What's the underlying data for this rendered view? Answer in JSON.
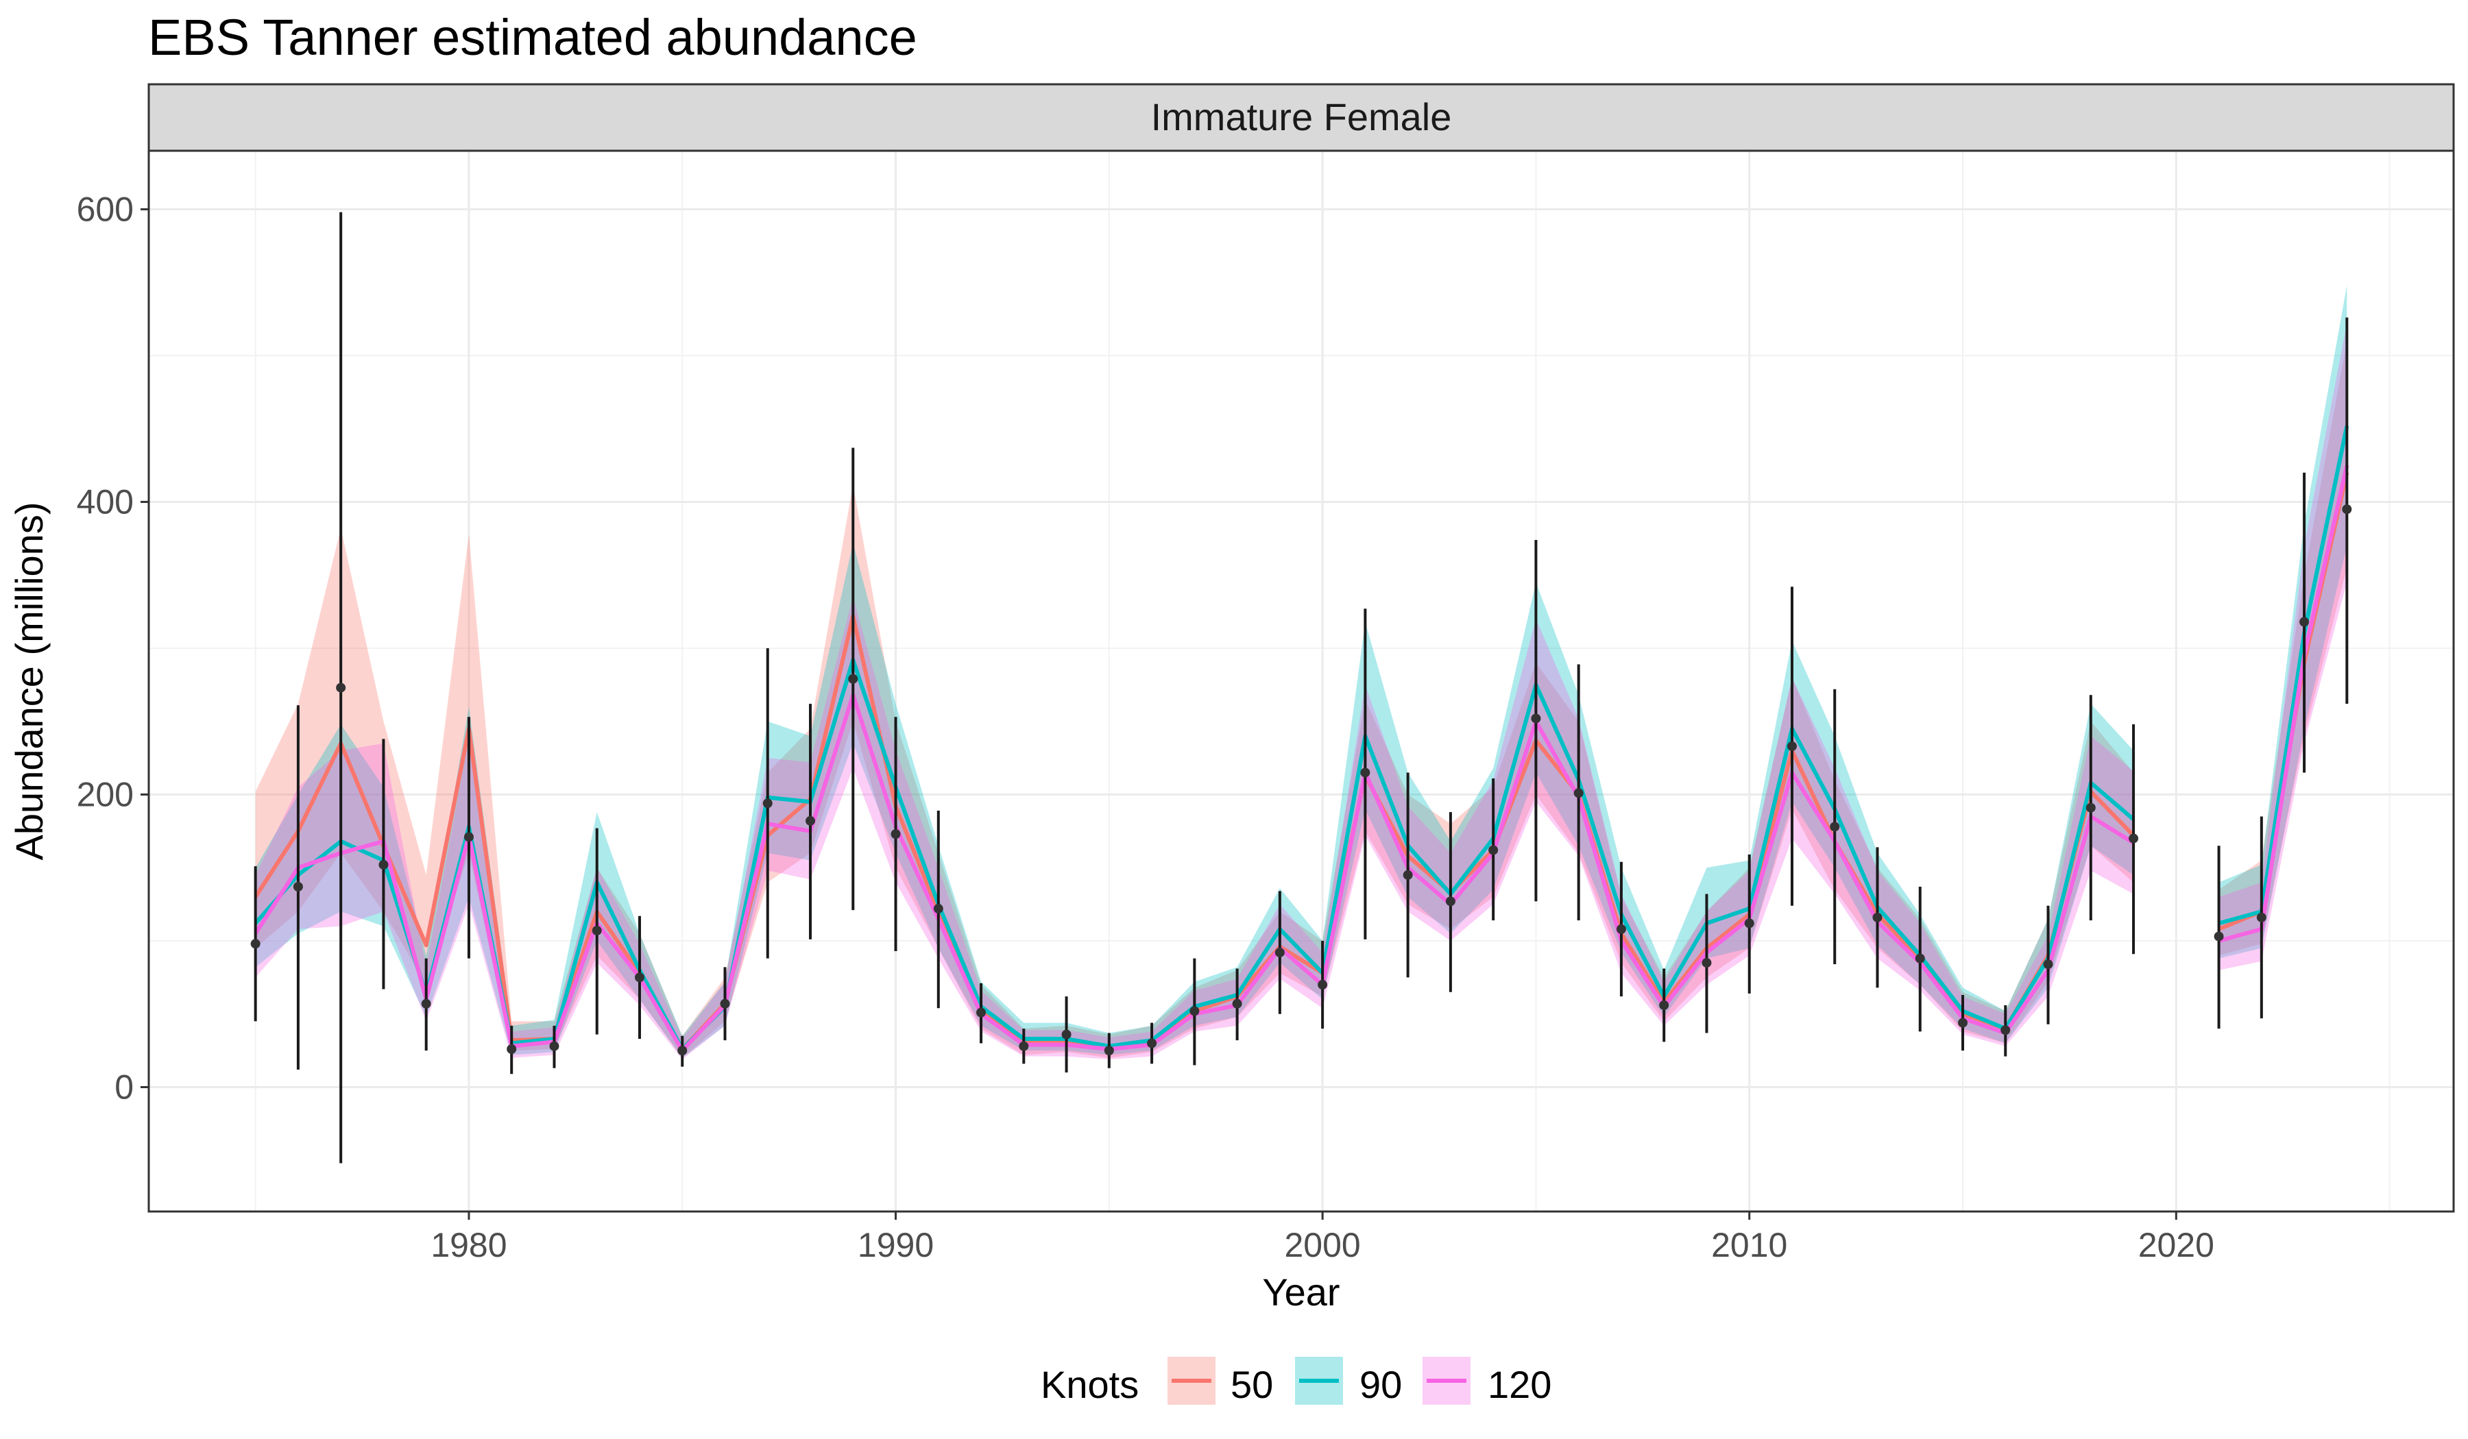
{
  "chart_data": {
    "type": "line",
    "title": "EBS Tanner estimated abundance",
    "facet": "Immature Female",
    "xlabel": "Year",
    "ylabel": "Abundance (millions)",
    "xlim": [
      1972.5,
      2026.5
    ],
    "ylim": [
      -85,
      640
    ],
    "x_ticks": [
      1980,
      1990,
      2000,
      2010,
      2020
    ],
    "x_minor_ticks": [
      1975,
      1985,
      1995,
      2005,
      2015,
      2025
    ],
    "y_ticks": [
      0,
      200,
      400,
      600
    ],
    "y_minor_ticks": [
      100,
      300,
      500
    ],
    "grid": true,
    "legend": {
      "title": "Knots",
      "position": "bottom",
      "entries": [
        "50",
        "90",
        "120"
      ]
    },
    "colors": {
      "50": "#F8766D",
      "90": "#00BFC4",
      "120": "#F564E3",
      "observed": "#1a1a1a",
      "grid": "#ebebeb",
      "strip": "#d9d9d9"
    },
    "x": [
      1975,
      1976,
      1977,
      1978,
      1979,
      1980,
      1981,
      1982,
      1983,
      1984,
      1985,
      1986,
      1987,
      1988,
      1989,
      1990,
      1991,
      1992,
      1993,
      1994,
      1995,
      1996,
      1997,
      1998,
      1999,
      2000,
      2001,
      2002,
      2003,
      2004,
      2005,
      2006,
      2007,
      2008,
      2009,
      2010,
      2011,
      2012,
      2013,
      2014,
      2015,
      2016,
      2017,
      2018,
      2019,
      2021,
      2022,
      2023,
      2024
    ],
    "observed": {
      "mean": [
        98,
        137,
        273,
        152,
        57,
        171,
        26,
        28,
        107,
        75,
        25,
        57,
        194,
        182,
        279,
        173,
        122,
        51,
        28,
        36,
        25,
        30,
        52,
        57,
        92,
        70,
        215,
        145,
        127,
        162,
        252,
        201,
        108,
        56,
        85,
        112,
        233,
        178,
        116,
        88,
        44,
        39,
        84,
        191,
        170,
        103,
        116,
        318,
        395
      ],
      "lower": [
        45,
        12,
        -52,
        67,
        25,
        88,
        9,
        13,
        36,
        33,
        14,
        32,
        88,
        101,
        121,
        93,
        54,
        30,
        16,
        10,
        13,
        16,
        15,
        32,
        50,
        40,
        101,
        75,
        65,
        114,
        127,
        114,
        62,
        31,
        37,
        64,
        124,
        84,
        68,
        38,
        25,
        21,
        43,
        114,
        91,
        40,
        47,
        215,
        262
      ],
      "upper": [
        151,
        261,
        598,
        238,
        88,
        253,
        42,
        42,
        177,
        117,
        35,
        82,
        300,
        262,
        437,
        253,
        189,
        71,
        40,
        62,
        37,
        44,
        88,
        81,
        134,
        100,
        327,
        215,
        188,
        211,
        374,
        289,
        154,
        81,
        132,
        159,
        342,
        272,
        164,
        137,
        63,
        56,
        124,
        268,
        248,
        165,
        185,
        420,
        526
      ]
    },
    "series": [
      {
        "name": "50",
        "values": [
          130,
          175,
          235,
          165,
          97,
          245,
          32,
          33,
          120,
          78,
          26,
          57,
          172,
          197,
          322,
          192,
          120,
          53,
          30,
          32,
          27,
          31,
          52,
          62,
          96,
          78,
          213,
          158,
          133,
          162,
          237,
          200,
          105,
          58,
          95,
          118,
          230,
          168,
          118,
          88,
          50,
          40,
          90,
          202,
          172,
          108,
          120,
          290,
          420
        ],
        "lower": [
          95,
          120,
          160,
          120,
          70,
          160,
          25,
          26,
          90,
          60,
          20,
          45,
          140,
          160,
          250,
          150,
          95,
          40,
          22,
          24,
          20,
          24,
          40,
          48,
          78,
          62,
          175,
          125,
          108,
          130,
          200,
          160,
          85,
          45,
          75,
          95,
          190,
          135,
          95,
          70,
          38,
          30,
          72,
          165,
          140,
          90,
          98,
          240,
          355
        ],
        "upper": [
          202,
          262,
          382,
          250,
          145,
          378,
          45,
          45,
          150,
          105,
          35,
          75,
          215,
          245,
          412,
          250,
          160,
          70,
          40,
          42,
          36,
          42,
          68,
          80,
          120,
          100,
          265,
          200,
          180,
          205,
          290,
          250,
          130,
          75,
          120,
          150,
          280,
          210,
          150,
          115,
          65,
          52,
          115,
          250,
          215,
          135,
          155,
          350,
          510
        ]
      },
      {
        "name": "90",
        "values": [
          112,
          145,
          168,
          155,
          63,
          178,
          30,
          33,
          140,
          80,
          26,
          55,
          198,
          195,
          292,
          205,
          125,
          55,
          33,
          33,
          28,
          32,
          55,
          63,
          108,
          78,
          240,
          165,
          132,
          170,
          275,
          210,
          118,
          62,
          112,
          122,
          245,
          190,
          123,
          90,
          52,
          40,
          88,
          208,
          183,
          112,
          120,
          310,
          452
        ],
        "lower": [
          82,
          105,
          120,
          110,
          48,
          130,
          22,
          24,
          100,
          60,
          20,
          42,
          160,
          155,
          235,
          160,
          95,
          42,
          25,
          25,
          22,
          25,
          42,
          48,
          85,
          60,
          190,
          130,
          105,
          135,
          215,
          165,
          92,
          48,
          88,
          95,
          195,
          150,
          97,
          70,
          40,
          30,
          68,
          165,
          145,
          88,
          95,
          245,
          370
        ],
        "upper": [
          150,
          200,
          248,
          205,
          90,
          260,
          42,
          46,
          188,
          105,
          35,
          72,
          250,
          240,
          372,
          262,
          165,
          72,
          44,
          44,
          37,
          42,
          72,
          82,
          136,
          100,
          318,
          215,
          168,
          218,
          345,
          268,
          150,
          80,
          150,
          155,
          305,
          240,
          160,
          118,
          68,
          52,
          115,
          262,
          230,
          140,
          152,
          385,
          548
        ]
      },
      {
        "name": "120",
        "values": [
          105,
          150,
          160,
          168,
          60,
          172,
          28,
          31,
          112,
          75,
          25,
          56,
          180,
          175,
          268,
          178,
          115,
          50,
          29,
          29,
          26,
          29,
          50,
          56,
          95,
          70,
          215,
          150,
          125,
          160,
          250,
          198,
          100,
          55,
          92,
          115,
          215,
          168,
          113,
          85,
          47,
          37,
          80,
          185,
          167,
          100,
          108,
          295,
          425
        ],
        "lower": [
          75,
          108,
          110,
          120,
          45,
          125,
          20,
          22,
          85,
          56,
          19,
          42,
          148,
          142,
          218,
          140,
          88,
          38,
          21,
          21,
          19,
          21,
          38,
          42,
          74,
          54,
          172,
          120,
          100,
          125,
          195,
          158,
          78,
          42,
          70,
          90,
          170,
          132,
          88,
          66,
          36,
          28,
          62,
          148,
          132,
          80,
          86,
          235,
          345
        ],
        "upper": [
          145,
          205,
          230,
          235,
          82,
          238,
          38,
          41,
          150,
          98,
          33,
          72,
          225,
          222,
          335,
          230,
          150,
          66,
          39,
          39,
          34,
          38,
          66,
          74,
          125,
          92,
          275,
          192,
          160,
          210,
          320,
          252,
          132,
          72,
          120,
          148,
          280,
          218,
          148,
          112,
          62,
          50,
          104,
          240,
          216,
          130,
          140,
          370,
          522
        ]
      }
    ]
  }
}
